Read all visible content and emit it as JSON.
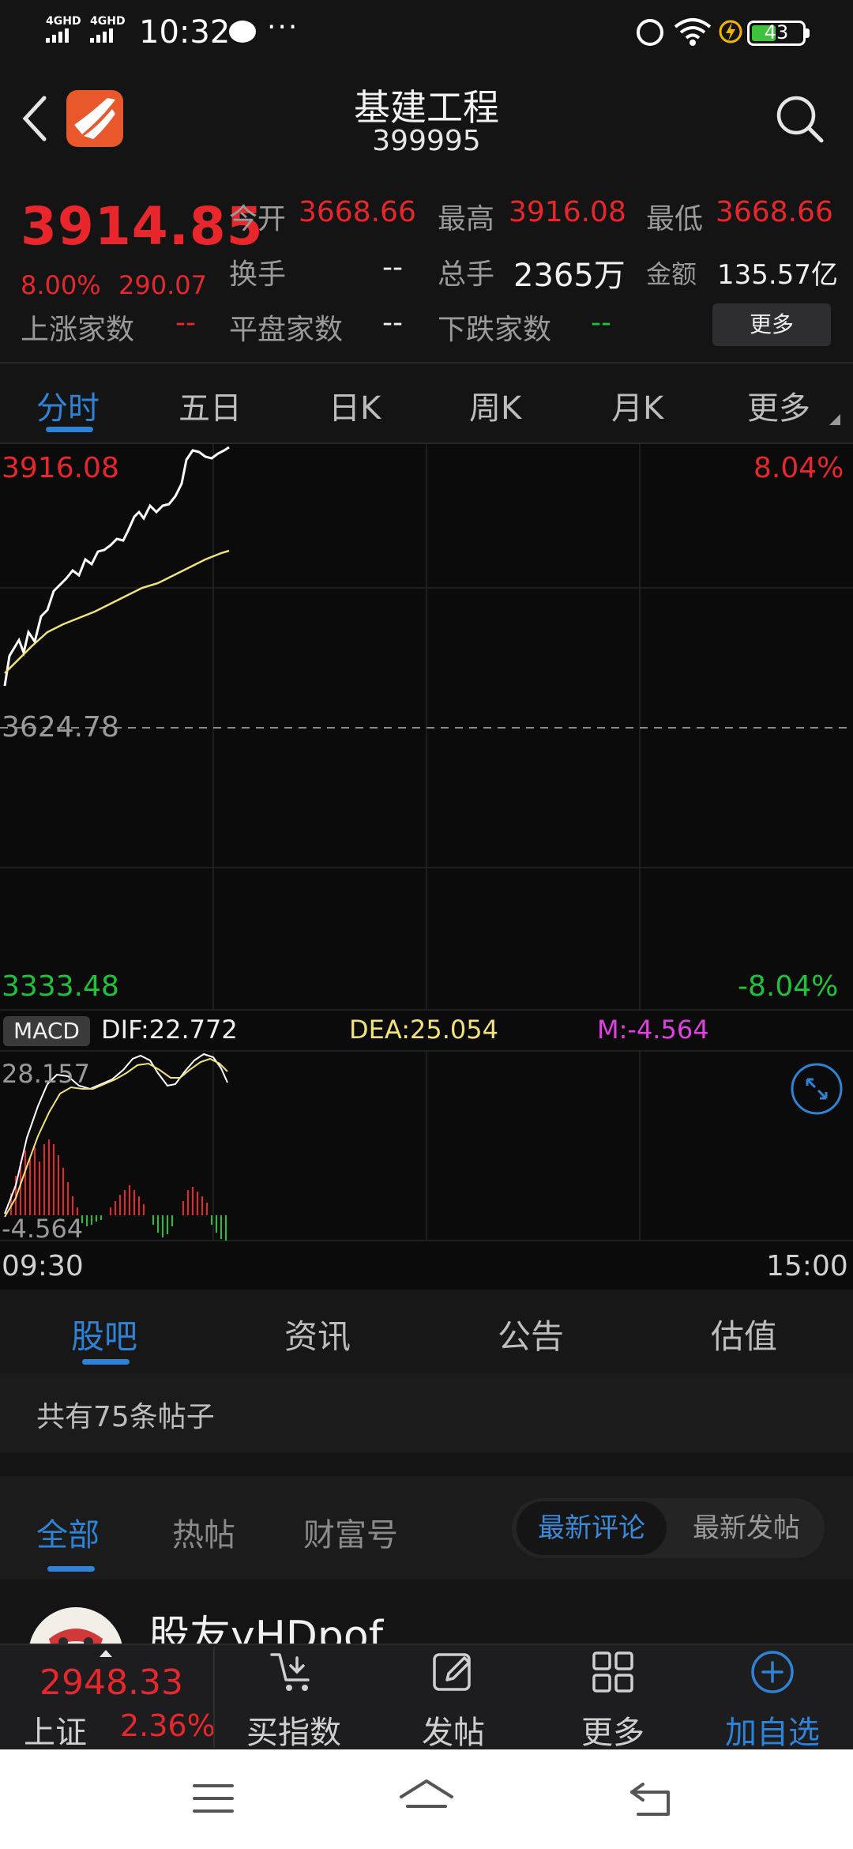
{
  "status_bar": {
    "sim1": "4GHD",
    "sim2": "4GHD",
    "time": "10:32",
    "more": "···",
    "battery": "43"
  },
  "header": {
    "title": "基建工程",
    "code": "399995"
  },
  "quote": {
    "price": "3914.85",
    "change_pct": "8.00%",
    "change_abs": "290.07",
    "open_label": "今开",
    "open": "3668.66",
    "high_label": "最高",
    "high": "3916.08",
    "low_label": "最低",
    "low": "3668.66",
    "turnover_label": "换手",
    "turnover": "--",
    "volume_label": "总手",
    "volume": "2365万",
    "amount_label": "金额",
    "amount": "135.57亿",
    "up_label": "上涨家数",
    "up": "--",
    "flat_label": "平盘家数",
    "flat": "--",
    "down_label": "下跌家数",
    "down": "--",
    "more_button": "更多"
  },
  "chart_tabs": [
    "分时",
    "五日",
    "日K",
    "周K",
    "月K",
    "更多"
  ],
  "chart": {
    "price_max": "3916.08",
    "price_min": "3333.48",
    "pre_close": "3624.78",
    "pct_max": "8.04%",
    "pct_min": "-8.04%",
    "macd_button": "MACD",
    "dif": "DIF:22.772",
    "dea": "DEA:25.054",
    "m": "M:-4.564",
    "macd_max": "28.157",
    "macd_min": "-4.564",
    "time_start": "09:30",
    "time_end": "15:00",
    "colors": {
      "price_line": "#ffffff",
      "avg_line": "#f1e27a",
      "up": "#e8262b",
      "down": "#1fc23a",
      "dea": "#f1e27a",
      "m": "#e040e0"
    }
  },
  "lower_tabs": [
    "股吧",
    "资讯",
    "公告",
    "估值"
  ],
  "post_count": "共有75条帖子",
  "filter_tabs": [
    "全部",
    "热帖",
    "财富号"
  ],
  "sort": {
    "latest_comment": "最新评论",
    "latest_post": "最新发帖"
  },
  "post": {
    "author": "股友yHDpof"
  },
  "toolbar": {
    "index_price": "2948.33",
    "index_name": "上证",
    "index_pct": "2.36%",
    "buy_index": "买指数",
    "post": "发帖",
    "more": "更多",
    "add_watchlist": "加自选"
  }
}
